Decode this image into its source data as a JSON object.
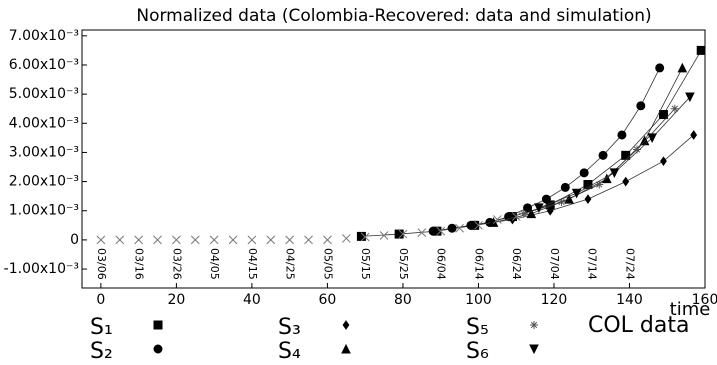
{
  "chart_data": {
    "type": "line",
    "title": "Normalized data (Colombia-Recovered: data and simulation)",
    "x_label": "time",
    "xlim": [
      -5,
      160
    ],
    "xticks": [
      0,
      20,
      40,
      60,
      80,
      100,
      120,
      140,
      160
    ],
    "ylim": [
      -0.00165,
      0.0072
    ],
    "yticks": [
      {
        "value": -0.001,
        "label": "-1.00x10⁻³"
      },
      0,
      {
        "value": 0.001,
        "label": "1.00x10⁻³"
      },
      {
        "value": 0.002,
        "label": "2.00x10⁻³"
      },
      {
        "value": 0.003,
        "label": "3.00x10⁻³"
      },
      {
        "value": 0.004,
        "label": "4.00x10⁻³"
      },
      {
        "value": 0.005,
        "label": "5.00x10⁻³"
      },
      {
        "value": 0.006,
        "label": "6.00x10⁻³"
      },
      {
        "value": 0.007,
        "label": "7.00x10⁻³"
      }
    ],
    "date_labels": {
      "x": [
        0,
        10,
        20,
        30,
        40,
        50,
        60,
        70,
        80,
        90,
        100,
        110,
        120,
        130,
        140
      ],
      "labels": [
        "03/06",
        "03/16",
        "03/26",
        "04/05",
        "04/15",
        "04/25",
        "05/05",
        "05/15",
        "05/25",
        "06/04",
        "06/14",
        "06/24",
        "07/04",
        "07/14",
        "07/24"
      ]
    },
    "series": [
      {
        "name": "S₁",
        "marker": "square",
        "color": "#000",
        "x": [
          69,
          79,
          89,
          99,
          109,
          119,
          129,
          139,
          149,
          159
        ],
        "values": [
          0.00012,
          0.0002,
          0.0003,
          0.0005,
          0.0008,
          0.0012,
          0.0019,
          0.0029,
          0.0043,
          0.0065
        ]
      },
      {
        "name": "S₂",
        "marker": "circle",
        "color": "#000",
        "x": [
          88,
          93,
          98,
          103,
          108,
          113,
          118,
          123,
          128,
          133,
          138,
          143,
          148
        ],
        "values": [
          0.0003,
          0.0004,
          0.0005,
          0.0006,
          0.0008,
          0.0011,
          0.0014,
          0.0018,
          0.0023,
          0.0029,
          0.0036,
          0.0046,
          0.0059
        ]
      },
      {
        "name": "S₃",
        "marker": "diamond",
        "color": "#000",
        "x": [
          99,
          109,
          119,
          129,
          139,
          149,
          157
        ],
        "values": [
          0.0005,
          0.0007,
          0.001,
          0.0014,
          0.002,
          0.0027,
          0.0036
        ]
      },
      {
        "name": "S₄",
        "marker": "triangle",
        "color": "#000",
        "x": [
          104,
          114,
          124,
          134,
          144,
          154
        ],
        "values": [
          0.0006,
          0.0009,
          0.0014,
          0.0021,
          0.0034,
          0.0059
        ]
      },
      {
        "name": "S₅",
        "marker": "asterisk",
        "color": "#555",
        "x": [
          112,
          122,
          132,
          142,
          152
        ],
        "values": [
          0.0009,
          0.0013,
          0.0019,
          0.0031,
          0.0045
        ]
      },
      {
        "name": "S₆",
        "marker": "triangle-down",
        "color": "#000",
        "x": [
          116,
          126,
          136,
          146,
          156
        ],
        "values": [
          0.0011,
          0.0016,
          0.0023,
          0.0035,
          0.0049
        ]
      },
      {
        "name": "COL data",
        "marker": "cross",
        "color": "#777",
        "line": false,
        "x": [
          0,
          5,
          10,
          15,
          20,
          25,
          30,
          35,
          40,
          45,
          50,
          55,
          60,
          65,
          70,
          75,
          80,
          85,
          90,
          95,
          100,
          105,
          110
        ],
        "values": [
          0,
          0,
          0,
          0,
          0,
          0,
          0,
          0,
          0,
          0,
          0,
          0,
          0,
          5e-05,
          0.0001,
          0.00015,
          0.0002,
          0.00025,
          0.0003,
          0.0004,
          0.0005,
          0.0007,
          0.0008
        ]
      }
    ]
  }
}
